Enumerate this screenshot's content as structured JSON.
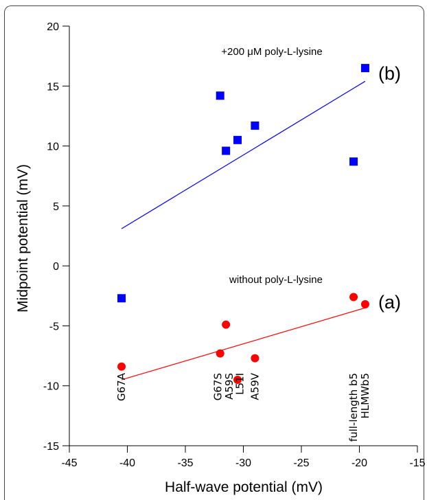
{
  "chart_data": {
    "type": "scatter",
    "xlabel": "Half-wave potential (mV)",
    "ylabel": "Midpoint potential (mV)",
    "xlim": [
      -45,
      -15
    ],
    "ylim": [
      -15,
      20
    ],
    "xticks": [
      -45,
      -40,
      -35,
      -30,
      -25,
      -20,
      -15
    ],
    "yticks": [
      -15,
      -10,
      -5,
      0,
      5,
      10,
      15,
      20
    ],
    "grid": false,
    "series": [
      {
        "name": "(b)",
        "label": "+200 μM poly-L-lysine",
        "marker": "square",
        "color": "#0000ff",
        "x": [
          -40.5,
          -32,
          -31.5,
          -30.5,
          -29,
          -20.5,
          -19.5
        ],
        "y": [
          -2.7,
          14.2,
          9.6,
          10.5,
          11.7,
          8.7,
          16.5
        ],
        "fit": {
          "x": [
            -40.5,
            -19.5
          ],
          "y": [
            3.1,
            15.4
          ]
        }
      },
      {
        "name": "(a)",
        "label": "without poly-L-lysine",
        "marker": "circle",
        "color": "#ff0000",
        "x": [
          -40.5,
          -32,
          -31.5,
          -30.5,
          -29,
          -20.5,
          -19.5
        ],
        "y": [
          -8.4,
          -7.3,
          -4.9,
          -9.5,
          -7.7,
          -2.6,
          -3.2
        ],
        "fit": {
          "x": [
            -40.5,
            -19.5
          ],
          "y": [
            -9.5,
            -3.5
          ]
        }
      }
    ],
    "point_labels": [
      {
        "text": "G67A",
        "x": -40.5
      },
      {
        "text": "G67S",
        "x": -32.2
      },
      {
        "text": "A59S",
        "x": -31.2
      },
      {
        "text": "L51I",
        "x": -30.3
      },
      {
        "text": "A59V",
        "x": -29.0
      },
      {
        "text": "full-length b5",
        "x": -20.5
      },
      {
        "text": "HLMWb5",
        "x": -19.5
      }
    ]
  }
}
